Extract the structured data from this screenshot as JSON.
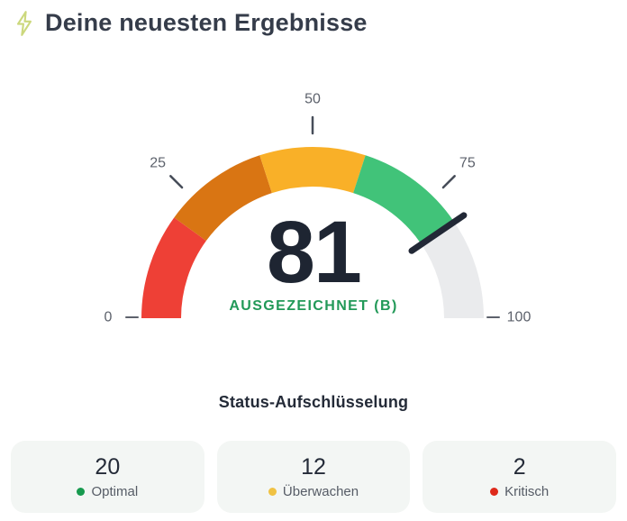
{
  "header": {
    "title": "Deine neuesten Ergebnisse",
    "icon": "lightning-bolt-icon",
    "icon_color": "#ccd87d"
  },
  "chart_data": {
    "type": "gauge",
    "title": "Deine neuesten Ergebnisse",
    "value": 81,
    "value_label": "81",
    "status_label": "AUSGEZEICHNET (B)",
    "status_color": "#229958",
    "value_color": "#1e2532",
    "min": 0,
    "max": 100,
    "ticks": [
      {
        "value": 0,
        "label": "0"
      },
      {
        "value": 25,
        "label": "25"
      },
      {
        "value": 50,
        "label": "50"
      },
      {
        "value": 75,
        "label": "75"
      },
      {
        "value": 100,
        "label": "100"
      }
    ],
    "segments": [
      {
        "from": 0,
        "to": 20,
        "color": "#ee4036",
        "name": "kritisch-zone"
      },
      {
        "from": 20,
        "to": 40,
        "color": "#d97513",
        "name": "warn-zone"
      },
      {
        "from": 40,
        "to": 60,
        "color": "#f9b028",
        "name": "ueberwachen-zone"
      },
      {
        "from": 60,
        "to": 81,
        "color": "#41c379",
        "name": "optimal-zone-filled"
      },
      {
        "from": 81,
        "to": 100,
        "color": "#eaebed",
        "name": "remainder-zone"
      }
    ],
    "needle": {
      "value": 81,
      "color": "#222836"
    },
    "tick_color": "#474d59",
    "tick_label_color": "#5d626c"
  },
  "status_breakdown": {
    "title": "Status-Aufschlüsselung",
    "cards": [
      {
        "count": "20",
        "label": "Optimal",
        "dot_color": "#179a4e"
      },
      {
        "count": "12",
        "label": "Überwachen",
        "dot_color": "#f0c243"
      },
      {
        "count": "2",
        "label": "Kritisch",
        "dot_color": "#de2a1b"
      }
    ]
  }
}
